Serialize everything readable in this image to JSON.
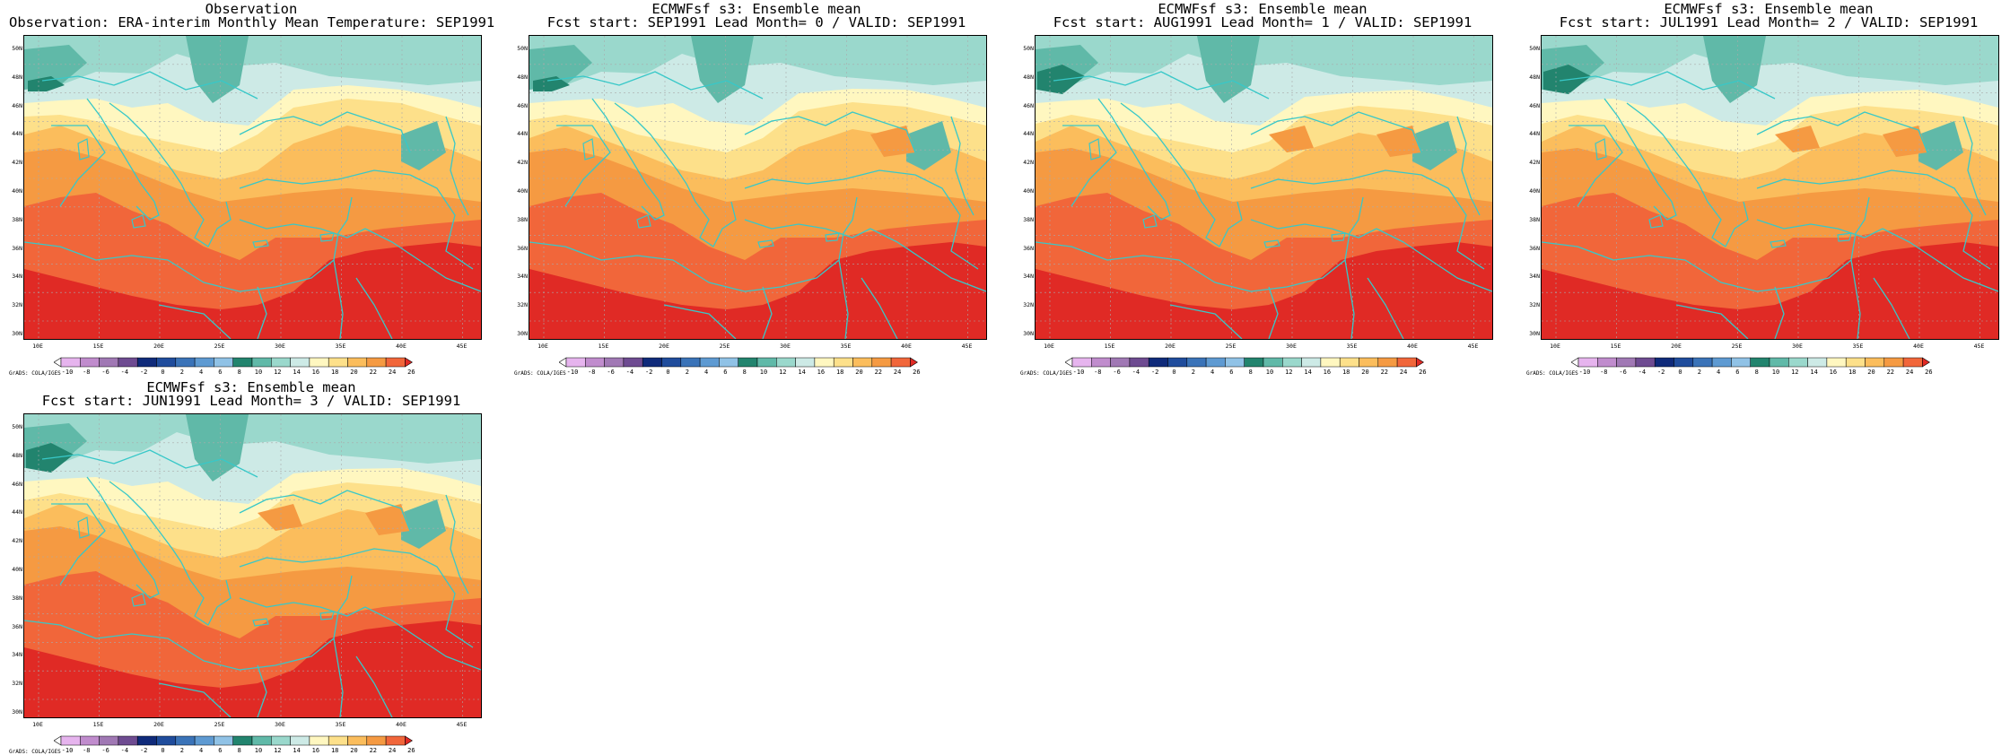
{
  "panels": [
    {
      "id": "obs",
      "title_line1": "Observation",
      "title_line2": "Observation: ERA-interim Monthly Mean Temperature: SEP1991",
      "variant": 0
    },
    {
      "id": "lead0",
      "title_line1": "ECMWFsf s3: Ensemble mean",
      "title_line2": "Fcst start: SEP1991  Lead Month= 0 / VALID: SEP1991",
      "variant": 1
    },
    {
      "id": "lead1",
      "title_line1": "ECMWFsf s3: Ensemble mean",
      "title_line2": "Fcst start: AUG1991  Lead Month= 1 / VALID: SEP1991",
      "variant": 2
    },
    {
      "id": "lead2",
      "title_line1": "ECMWFsf s3: Ensemble mean",
      "title_line2": "Fcst start: JUL1991  Lead Month= 2 / VALID: SEP1991",
      "variant": 3
    },
    {
      "id": "lead3",
      "title_line1": "ECMWFsf s3: Ensemble mean",
      "title_line2": "Fcst start: JUN1991  Lead Month= 3 / VALID: SEP1991",
      "variant": 4
    }
  ],
  "map": {
    "lat_labels": [
      "50N",
      "48N",
      "46N",
      "44N",
      "42N",
      "40N",
      "38N",
      "36N",
      "34N",
      "32N",
      "30N"
    ],
    "lon_labels": [
      "10E",
      "15E",
      "20E",
      "25E",
      "30E",
      "35E",
      "40E",
      "45E"
    ],
    "lat_range": [
      30,
      51
    ],
    "lon_range": [
      8,
      46
    ],
    "coastline_color": "#38c8c8",
    "grid_style": "dotted"
  },
  "colorbar": {
    "labels": [
      "-10",
      "-8",
      "-6",
      "-4",
      "-2",
      "0",
      "2",
      "4",
      "6",
      "8",
      "10",
      "12",
      "14",
      "16",
      "18",
      "20",
      "22",
      "24",
      "26"
    ],
    "colors": [
      "#ffffff",
      "#e6b4ee",
      "#c08ccd",
      "#a078b4",
      "#6e4b91",
      "#0f2a7a",
      "#1f4c9c",
      "#3a73b8",
      "#5e9ad2",
      "#90c2e6",
      "#22846e",
      "#60b9a8",
      "#9ad8cc",
      "#cdeae6",
      "#fff7c0",
      "#fde08a",
      "#fbbd5c",
      "#f59a42",
      "#f1663a",
      "#e02a25"
    ],
    "source_label": "GrADS: COLA/IGES"
  }
}
